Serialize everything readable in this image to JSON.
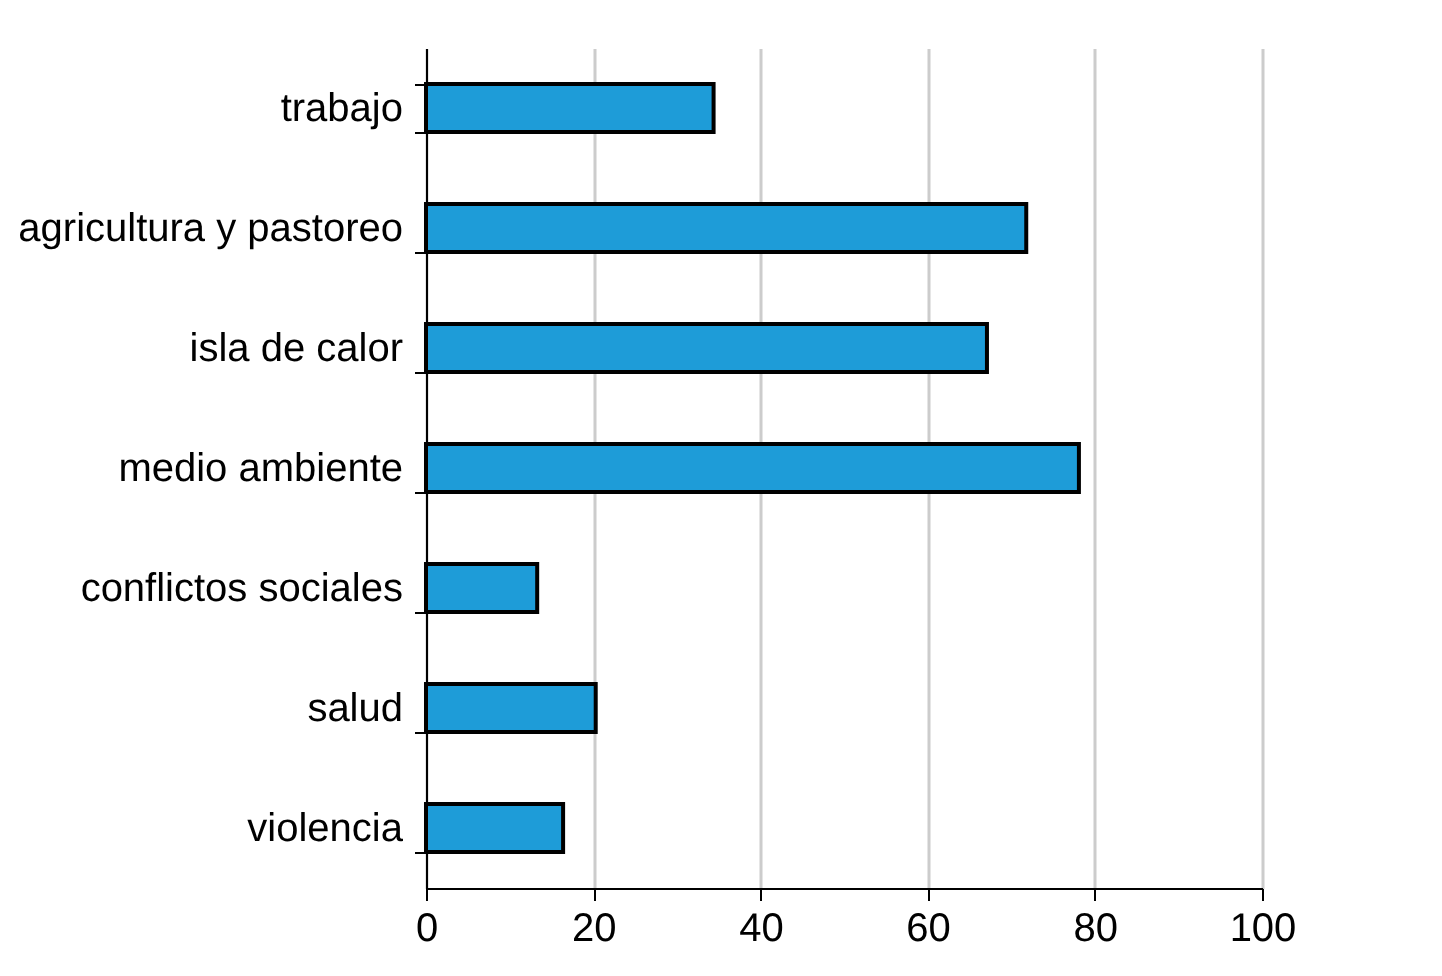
{
  "chart_data": {
    "type": "bar",
    "orientation": "horizontal",
    "categories": [
      "trabajo",
      "agricultura y pastoreo",
      "isla de calor",
      "medio ambiente",
      "conflictos sociales",
      "salud",
      "violencia"
    ],
    "values": [
      34.4,
      71.8,
      67.1,
      78.1,
      13.3,
      20.3,
      16.4
    ],
    "color": "#1e9cd8",
    "xlim": [
      0,
      100
    ],
    "xticks": [
      0,
      20,
      40,
      60,
      80,
      100
    ],
    "grid": "x"
  }
}
